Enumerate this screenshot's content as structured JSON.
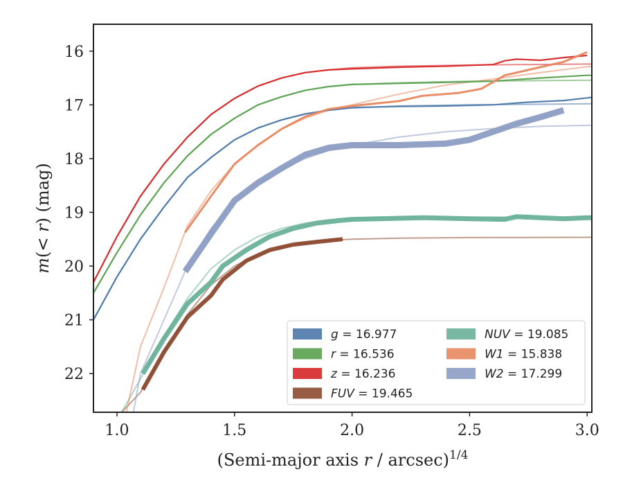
{
  "chart_data": {
    "type": "line",
    "xlabel": {
      "prefix": "(Semi-major axis ",
      "var": "r",
      "suffix": " / arcsec)",
      "exp": "1/4"
    },
    "ylabel": {
      "var1": "m",
      "mid1": "(< ",
      "var2": "r",
      "mid2": ") (mag)"
    },
    "xlim": [
      0.9,
      3.02
    ],
    "ylim": [
      22.72,
      15.5
    ],
    "y_inverted": true,
    "xticks": [
      {
        "v": 1.0,
        "label": "1.0"
      },
      {
        "v": 1.5,
        "label": "1.5"
      },
      {
        "v": 2.0,
        "label": "2.0"
      },
      {
        "v": 2.5,
        "label": "2.5"
      },
      {
        "v": 3.0,
        "label": "3.0"
      }
    ],
    "yticks": [
      {
        "v": 16,
        "label": "16"
      },
      {
        "v": 17,
        "label": "17"
      },
      {
        "v": 18,
        "label": "18"
      },
      {
        "v": 19,
        "label": "19"
      },
      {
        "v": 20,
        "label": "20"
      },
      {
        "v": 21,
        "label": "21"
      },
      {
        "v": 22,
        "label": "22"
      }
    ],
    "grid": false,
    "legend_position": "lower-right",
    "series": [
      {
        "band": "g",
        "value": "16.977",
        "color": "#4c78a8",
        "fit": [
          [
            0.9,
            21.0
          ],
          [
            1.0,
            20.2
          ],
          [
            1.1,
            19.5
          ],
          [
            1.2,
            18.9
          ],
          [
            1.3,
            18.35
          ],
          [
            1.4,
            17.98
          ],
          [
            1.5,
            17.65
          ],
          [
            1.6,
            17.43
          ],
          [
            1.7,
            17.28
          ],
          [
            1.8,
            17.17
          ],
          [
            1.9,
            17.1
          ],
          [
            2.0,
            17.06
          ],
          [
            2.2,
            17.02
          ],
          [
            2.5,
            17.0
          ],
          [
            3.02,
            16.98
          ]
        ],
        "data": [
          [
            0.9,
            21.0
          ],
          [
            1.0,
            20.2
          ],
          [
            1.1,
            19.5
          ],
          [
            1.2,
            18.9
          ],
          [
            1.3,
            18.35
          ],
          [
            1.4,
            17.98
          ],
          [
            1.5,
            17.65
          ],
          [
            1.6,
            17.43
          ],
          [
            1.7,
            17.28
          ],
          [
            1.8,
            17.17
          ],
          [
            1.9,
            17.1
          ],
          [
            2.0,
            17.05
          ],
          [
            2.2,
            17.03
          ],
          [
            2.4,
            17.02
          ],
          [
            2.6,
            17.0
          ],
          [
            2.75,
            16.95
          ],
          [
            2.9,
            16.92
          ],
          [
            3.0,
            16.87
          ],
          [
            3.02,
            16.86
          ]
        ]
      },
      {
        "band": "r",
        "value": "16.536",
        "color": "#59a14f",
        "fit": [
          [
            0.9,
            20.5
          ],
          [
            1.0,
            19.75
          ],
          [
            1.1,
            19.05
          ],
          [
            1.2,
            18.45
          ],
          [
            1.3,
            17.95
          ],
          [
            1.4,
            17.55
          ],
          [
            1.5,
            17.25
          ],
          [
            1.6,
            17.0
          ],
          [
            1.7,
            16.85
          ],
          [
            1.8,
            16.73
          ],
          [
            1.9,
            16.66
          ],
          [
            2.0,
            16.62
          ],
          [
            2.2,
            16.59
          ],
          [
            2.5,
            16.56
          ],
          [
            3.02,
            16.54
          ]
        ],
        "data": [
          [
            0.9,
            20.5
          ],
          [
            1.0,
            19.75
          ],
          [
            1.1,
            19.05
          ],
          [
            1.2,
            18.45
          ],
          [
            1.3,
            17.95
          ],
          [
            1.4,
            17.55
          ],
          [
            1.5,
            17.25
          ],
          [
            1.6,
            17.0
          ],
          [
            1.7,
            16.85
          ],
          [
            1.8,
            16.73
          ],
          [
            1.9,
            16.66
          ],
          [
            2.0,
            16.62
          ],
          [
            2.2,
            16.6
          ],
          [
            2.4,
            16.58
          ],
          [
            2.6,
            16.56
          ],
          [
            2.8,
            16.5
          ],
          [
            3.0,
            16.45
          ],
          [
            3.02,
            16.45
          ]
        ]
      },
      {
        "band": "z",
        "value": "16.236",
        "color": "#d62728",
        "fit": [
          [
            0.9,
            20.3
          ],
          [
            1.0,
            19.45
          ],
          [
            1.1,
            18.7
          ],
          [
            1.2,
            18.1
          ],
          [
            1.3,
            17.6
          ],
          [
            1.4,
            17.18
          ],
          [
            1.5,
            16.88
          ],
          [
            1.6,
            16.65
          ],
          [
            1.7,
            16.5
          ],
          [
            1.8,
            16.4
          ],
          [
            1.9,
            16.35
          ],
          [
            2.0,
            16.31
          ],
          [
            2.2,
            16.28
          ],
          [
            2.5,
            16.26
          ],
          [
            3.02,
            16.24
          ]
        ],
        "data": [
          [
            0.9,
            20.3
          ],
          [
            1.0,
            19.45
          ],
          [
            1.1,
            18.7
          ],
          [
            1.2,
            18.1
          ],
          [
            1.3,
            17.6
          ],
          [
            1.4,
            17.18
          ],
          [
            1.5,
            16.88
          ],
          [
            1.6,
            16.65
          ],
          [
            1.7,
            16.5
          ],
          [
            1.8,
            16.4
          ],
          [
            1.9,
            16.35
          ],
          [
            2.0,
            16.33
          ],
          [
            2.2,
            16.3
          ],
          [
            2.4,
            16.28
          ],
          [
            2.6,
            16.25
          ],
          [
            2.65,
            16.18
          ],
          [
            2.7,
            16.15
          ],
          [
            2.8,
            16.17
          ],
          [
            2.9,
            16.12
          ],
          [
            3.0,
            16.08
          ]
        ]
      },
      {
        "band": "FUV",
        "value": "19.465",
        "color": "#8c4a2f",
        "fit": [
          [
            1.02,
            22.72
          ],
          [
            1.1,
            22.35
          ],
          [
            1.2,
            21.6
          ],
          [
            1.3,
            20.9
          ],
          [
            1.4,
            20.35
          ],
          [
            1.5,
            20.0
          ],
          [
            1.6,
            19.78
          ],
          [
            1.7,
            19.65
          ],
          [
            1.8,
            19.57
          ],
          [
            1.9,
            19.52
          ],
          [
            2.0,
            19.5
          ],
          [
            2.2,
            19.48
          ],
          [
            2.5,
            19.47
          ],
          [
            3.02,
            19.465
          ]
        ],
        "data": [
          [
            1.11,
            22.3
          ],
          [
            1.2,
            21.6
          ],
          [
            1.3,
            20.95
          ],
          [
            1.4,
            20.55
          ],
          [
            1.45,
            20.25
          ],
          [
            1.55,
            19.9
          ],
          [
            1.65,
            19.7
          ],
          [
            1.75,
            19.6
          ],
          [
            1.85,
            19.55
          ],
          [
            1.96,
            19.5
          ]
        ]
      },
      {
        "band": "NUV",
        "value": "19.085",
        "color": "#6ab19a",
        "fit": [
          [
            1.02,
            22.72
          ],
          [
            1.1,
            22.1
          ],
          [
            1.2,
            21.3
          ],
          [
            1.3,
            20.6
          ],
          [
            1.4,
            20.05
          ],
          [
            1.5,
            19.7
          ],
          [
            1.6,
            19.45
          ],
          [
            1.7,
            19.3
          ],
          [
            1.8,
            19.2
          ],
          [
            1.9,
            19.14
          ],
          [
            2.0,
            19.11
          ],
          [
            2.2,
            19.09
          ],
          [
            2.5,
            19.09
          ],
          [
            3.02,
            19.085
          ]
        ],
        "data": [
          [
            1.11,
            22.0
          ],
          [
            1.2,
            21.35
          ],
          [
            1.3,
            20.7
          ],
          [
            1.4,
            20.3
          ],
          [
            1.45,
            20.0
          ],
          [
            1.55,
            19.7
          ],
          [
            1.65,
            19.45
          ],
          [
            1.75,
            19.3
          ],
          [
            1.85,
            19.2
          ],
          [
            1.95,
            19.15
          ],
          [
            2.0,
            19.13
          ],
          [
            2.3,
            19.1
          ],
          [
            2.5,
            19.12
          ],
          [
            2.65,
            19.13
          ],
          [
            2.7,
            19.08
          ],
          [
            2.8,
            19.1
          ],
          [
            2.9,
            19.12
          ],
          [
            3.0,
            19.1
          ],
          [
            3.02,
            19.1
          ]
        ]
      },
      {
        "band": "W1",
        "value": "15.838",
        "color": "#e8875f",
        "fit": [
          [
            1.04,
            22.72
          ],
          [
            1.1,
            21.5
          ],
          [
            1.2,
            20.4
          ],
          [
            1.3,
            19.25
          ],
          [
            1.4,
            18.6
          ],
          [
            1.5,
            18.1
          ],
          [
            1.6,
            17.75
          ],
          [
            1.7,
            17.45
          ],
          [
            1.8,
            17.25
          ],
          [
            1.9,
            17.1
          ],
          [
            2.0,
            17.0
          ],
          [
            2.2,
            16.8
          ],
          [
            2.4,
            16.63
          ],
          [
            2.6,
            16.52
          ],
          [
            2.8,
            16.4
          ],
          [
            3.02,
            16.28
          ]
        ],
        "data": [
          [
            1.29,
            19.37
          ],
          [
            1.4,
            18.7
          ],
          [
            1.5,
            18.1
          ],
          [
            1.6,
            17.75
          ],
          [
            1.7,
            17.45
          ],
          [
            1.8,
            17.22
          ],
          [
            1.9,
            17.08
          ],
          [
            2.0,
            17.02
          ],
          [
            2.2,
            16.93
          ],
          [
            2.3,
            16.83
          ],
          [
            2.45,
            16.78
          ],
          [
            2.55,
            16.7
          ],
          [
            2.65,
            16.45
          ],
          [
            2.8,
            16.3
          ],
          [
            2.9,
            16.2
          ],
          [
            3.0,
            16.02
          ]
        ]
      },
      {
        "band": "W2",
        "value": "17.299",
        "color": "#8c9dc4",
        "fit": [
          [
            1.07,
            22.72
          ],
          [
            1.1,
            22.0
          ],
          [
            1.2,
            21.0
          ],
          [
            1.3,
            20.0
          ],
          [
            1.4,
            19.3
          ],
          [
            1.5,
            18.8
          ],
          [
            1.6,
            18.45
          ],
          [
            1.7,
            18.2
          ],
          [
            1.8,
            18.0
          ],
          [
            1.9,
            17.85
          ],
          [
            2.0,
            17.75
          ],
          [
            2.2,
            17.6
          ],
          [
            2.4,
            17.5
          ],
          [
            2.6,
            17.44
          ],
          [
            2.8,
            17.4
          ],
          [
            3.02,
            17.38
          ]
        ],
        "data": [
          [
            1.29,
            20.1
          ],
          [
            1.4,
            19.4
          ],
          [
            1.5,
            18.78
          ],
          [
            1.6,
            18.45
          ],
          [
            1.7,
            18.18
          ],
          [
            1.8,
            17.93
          ],
          [
            1.9,
            17.8
          ],
          [
            2.0,
            17.75
          ],
          [
            2.2,
            17.75
          ],
          [
            2.4,
            17.72
          ],
          [
            2.5,
            17.65
          ],
          [
            2.6,
            17.5
          ],
          [
            2.7,
            17.35
          ],
          [
            2.8,
            17.23
          ],
          [
            2.9,
            17.1
          ]
        ]
      }
    ]
  }
}
